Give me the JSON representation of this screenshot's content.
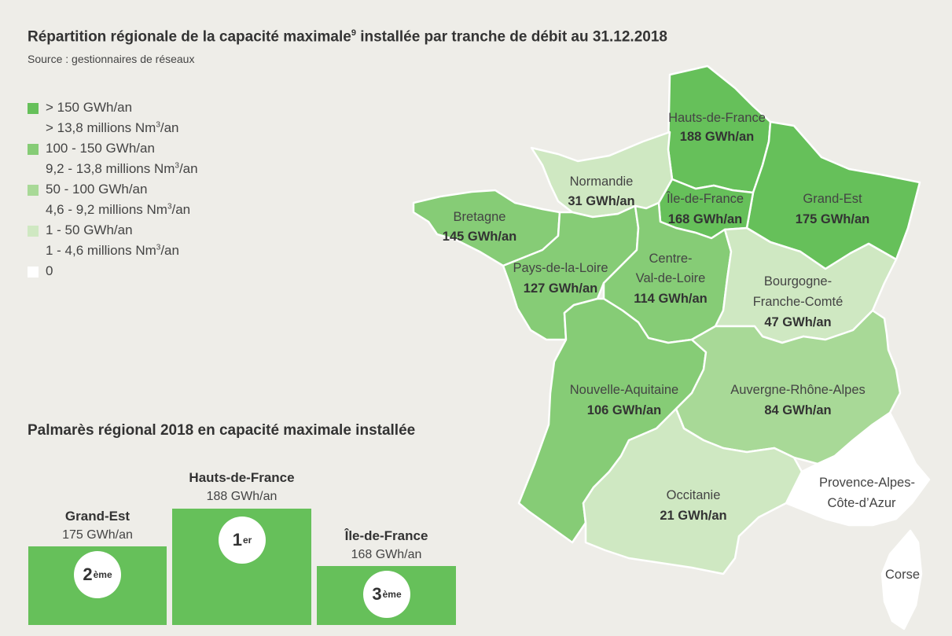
{
  "title": "Répartition régionale de la capacité maximale",
  "title_sup": "9",
  "title_rest": " installée par tranche de débit au 31.12.2018",
  "source": "Source : gestionnaires de réseaux",
  "colors": {
    "c1": "#66c05a",
    "c2": "#86cc76",
    "c3": "#a8d997",
    "c4": "#cfe8c2",
    "c5": "#ffffff"
  },
  "legend": [
    {
      "line1": "> 150 GWh/an",
      "line2": "> 13,8 millions Nm",
      "color": "#66c05a"
    },
    {
      "line1": "100 - 150 GWh/an",
      "line2": "9,2 - 13,8 millions Nm",
      "color": "#86cc76"
    },
    {
      "line1": "50 - 100 GWh/an",
      "line2": "4,6 - 9,2 millions Nm",
      "color": "#a8d997"
    },
    {
      "line1": "1 - 50 GWh/an",
      "line2": "1 - 4,6 millions Nm",
      "color": "#cfe8c2"
    },
    {
      "line1": "0",
      "line2": "",
      "color": "#ffffff"
    }
  ],
  "legend_unit_sup": "3",
  "legend_unit_tail": "/an",
  "regions": [
    {
      "id": "hauts-de-france",
      "name": "Hauts-de-France",
      "value": "188 GWh/an",
      "color": "#66c05a"
    },
    {
      "id": "normandie",
      "name": "Normandie",
      "value": "31 GWh/an",
      "color": "#cfe8c2"
    },
    {
      "id": "ile-de-france",
      "name": "Île-de-France",
      "value": "168 GWh/an",
      "color": "#66c05a"
    },
    {
      "id": "grand-est",
      "name": "Grand-Est",
      "value": "175 GWh/an",
      "color": "#66c05a"
    },
    {
      "id": "bretagne",
      "name": "Bretagne",
      "value": "145 GWh/an",
      "color": "#86cc76"
    },
    {
      "id": "pays-de-la-loire",
      "name": "Pays-de-la-Loire",
      "value": "127 GWh/an",
      "color": "#86cc76"
    },
    {
      "id": "centre-val-de-loire",
      "name_l1": "Centre-",
      "name_l2": "Val-de-Loire",
      "value": "114 GWh/an",
      "color": "#86cc76"
    },
    {
      "id": "bourgogne-franche-comte",
      "name_l1": "Bourgogne-",
      "name_l2": "Franche-Comté",
      "value": "47 GWh/an",
      "color": "#cfe8c2"
    },
    {
      "id": "nouvelle-aquitaine",
      "name": "Nouvelle-Aquitaine",
      "value": "106 GWh/an",
      "color": "#86cc76"
    },
    {
      "id": "auvergne-rhone-alpes",
      "name": "Auvergne-Rhône-Alpes",
      "value": "84 GWh/an",
      "color": "#a8d997"
    },
    {
      "id": "occitanie",
      "name": "Occitanie",
      "value": "21 GWh/an",
      "color": "#cfe8c2"
    },
    {
      "id": "paca",
      "name_l1": "Provence-Alpes-",
      "name_l2": "Côte-d’Azur",
      "color": "#ffffff"
    },
    {
      "id": "corse",
      "name": "Corse",
      "color": "#ffffff"
    }
  ],
  "palmares": {
    "title": "Palmarès régional 2018 en capacité maximale installée",
    "first": {
      "name": "Hauts-de-France",
      "value": "188 GWh/an",
      "rank": "1",
      "rank_sup": "er"
    },
    "second": {
      "name": "Grand-Est",
      "value": "175 GWh/an",
      "rank": "2",
      "rank_sup": "ème"
    },
    "third": {
      "name": "Île-de-France",
      "value": "168 GWh/an",
      "rank": "3",
      "rank_sup": "ème"
    }
  }
}
